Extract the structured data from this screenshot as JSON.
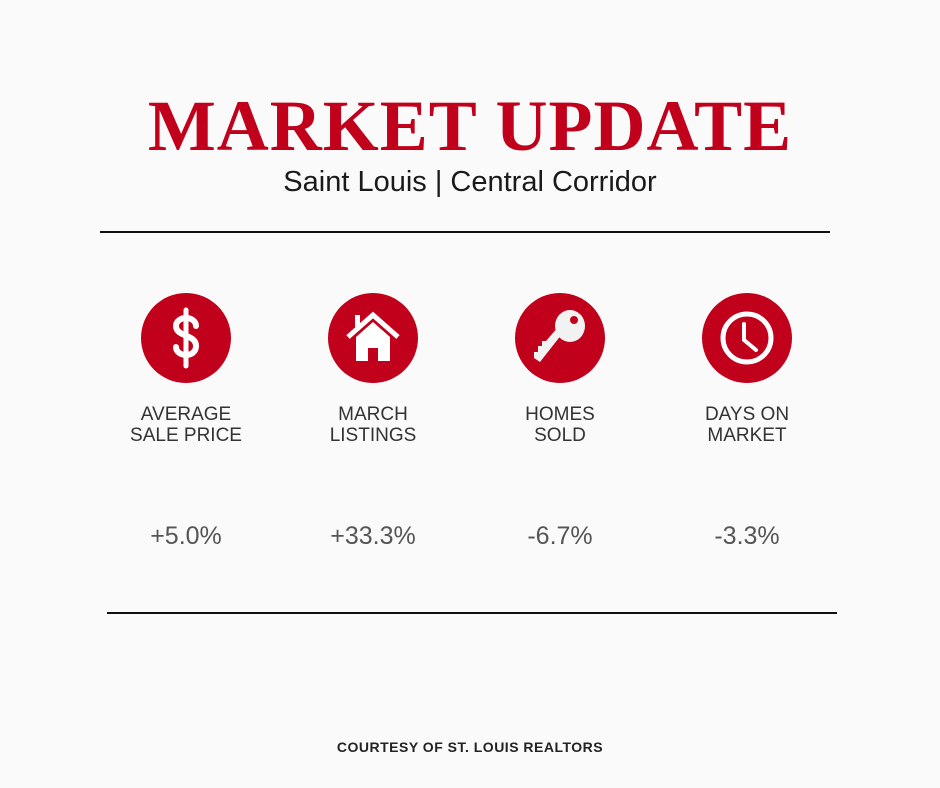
{
  "header": {
    "title": "MARKET UPDATE",
    "subtitle": "Saint Louis | Central Corridor"
  },
  "accent_color": "#c1001c",
  "stats": [
    {
      "icon": "dollar-icon",
      "label_line1": "AVERAGE",
      "label_line2": "SALE PRICE",
      "value": "+5.0%"
    },
    {
      "icon": "house-icon",
      "label_line1": "MARCH",
      "label_line2": "LISTINGS",
      "value": "+33.3%"
    },
    {
      "icon": "key-icon",
      "label_line1": "HOMES",
      "label_line2": "SOLD",
      "value": "-6.7%"
    },
    {
      "icon": "clock-icon",
      "label_line1": "DAYS ON",
      "label_line2": "MARKET",
      "value": "-3.3%"
    }
  ],
  "footer": {
    "text": "COURTESY OF ST. LOUIS REALTORS"
  }
}
